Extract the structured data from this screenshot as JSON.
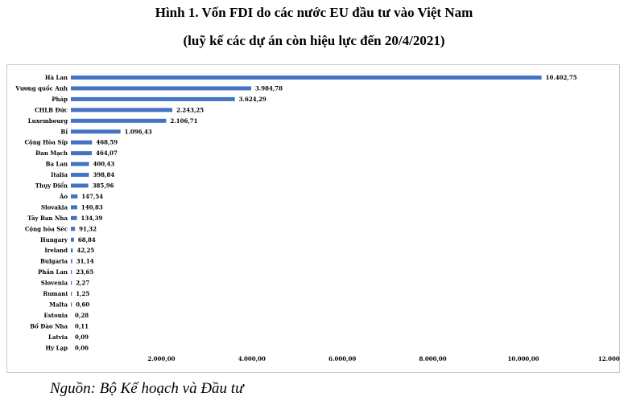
{
  "title": "Hình 1. Vốn FDI do các nước EU đầu tư vào Việt Nam",
  "subtitle": "(luỹ kế các dự án còn hiệu lực đến 20/4/2021)",
  "source": "Nguồn: Bộ Kế hoạch và Đầu tư",
  "colors": {
    "bar": "#4472c4"
  },
  "chart_data": {
    "type": "bar",
    "orientation": "horizontal",
    "title": "Hình 1. Vốn FDI do các nước EU đầu tư vào Việt Nam",
    "subtitle": "(luỹ kế các dự án còn hiệu lực đến 20/4/2021)",
    "xlabel": "",
    "ylabel": "",
    "xlim": [
      0,
      12000
    ],
    "grid": false,
    "legend": "none",
    "x_tick_values": [
      2000,
      4000,
      6000,
      8000,
      10000,
      12000
    ],
    "x_tick_labels": [
      "2.000,00",
      "4.000,00",
      "6.000,00",
      "8.000,00",
      "10.000,00",
      "12.000,00"
    ],
    "categories": [
      "Hà Lan",
      "Vương quốc Anh",
      "Pháp",
      "CHLB Đức",
      "Luxembourg",
      "Bỉ",
      "Cộng Hòa Síp",
      "Đan Mạch",
      "Ba Lan",
      "Italia",
      "Thụy Điển",
      "Áo",
      "Slovakia",
      "Tây Ban Nha",
      "Cộng hòa Séc",
      "Hungary",
      "Ireland",
      "Bulgaria",
      "Phần Lan",
      "Slovenia",
      "Rumani",
      "Malta",
      "Estonia",
      "Bồ Đào Nha",
      "Latvia",
      "Hy Lạp"
    ],
    "values": [
      10402.75,
      3984.78,
      3624.29,
      2243.25,
      2106.71,
      1096.43,
      468.59,
      464.07,
      400.43,
      398.84,
      385.96,
      147.54,
      140.83,
      134.39,
      91.32,
      68.84,
      42.25,
      31.14,
      23.65,
      2.27,
      1.25,
      0.6,
      0.28,
      0.11,
      0.09,
      0.06
    ],
    "value_labels": [
      "10.402,75",
      "3.984,78",
      "3.624,29",
      "2.243,25",
      "2.106,71",
      "1.096,43",
      "468,59",
      "464,07",
      "400,43",
      "398,84",
      "385,96",
      "147,54",
      "140,83",
      "134,39",
      "91,32",
      "68,84",
      "42,25",
      "31,14",
      "23,65",
      "2,27",
      "1,25",
      "0,60",
      "0,28",
      "0,11",
      "0,09",
      "0,06"
    ]
  }
}
